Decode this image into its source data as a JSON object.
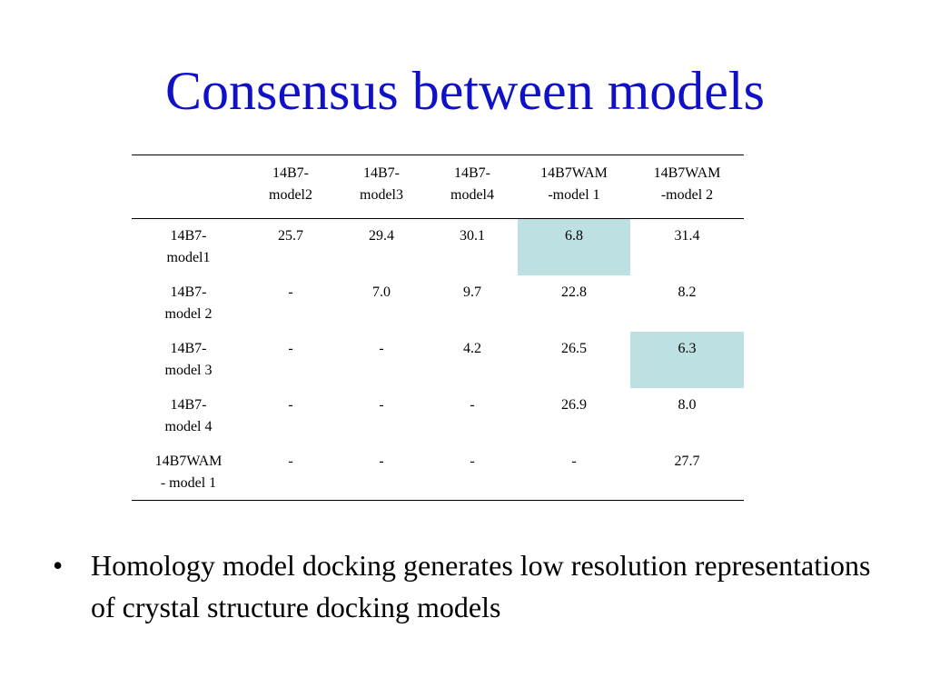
{
  "title": "Consensus between models",
  "table": {
    "header": [
      "",
      "14B7-\nmodel2",
      "14B7-\nmodel3",
      "14B7-\nmodel4",
      "14B7WAM\n-model 1",
      "14B7WAM\n-model 2"
    ],
    "rows": [
      {
        "label": "14B7-\nmodel1",
        "cells": [
          "25.7",
          "29.4",
          "30.1",
          "6.8",
          "31.4"
        ]
      },
      {
        "label": "14B7-\nmodel 2",
        "cells": [
          "-",
          "7.0",
          "9.7",
          "22.8",
          "8.2"
        ]
      },
      {
        "label": "14B7-\nmodel 3",
        "cells": [
          "-",
          "-",
          "4.2",
          "26.5",
          "6.3"
        ]
      },
      {
        "label": "14B7-\nmodel 4",
        "cells": [
          "-",
          "-",
          "-",
          "26.9",
          "8.0"
        ]
      },
      {
        "label": "14B7WAM\n- model 1",
        "cells": [
          "-",
          "-",
          "-",
          "-",
          "27.7"
        ]
      }
    ],
    "highlight_color": "#bde0e3"
  },
  "bullets": [
    {
      "marker": "•",
      "text": "Homology model docking generates low resolution representations of crystal structure docking models"
    }
  ],
  "colors": {
    "title": "#1010c8",
    "text": "#000000",
    "background": "#ffffff"
  }
}
